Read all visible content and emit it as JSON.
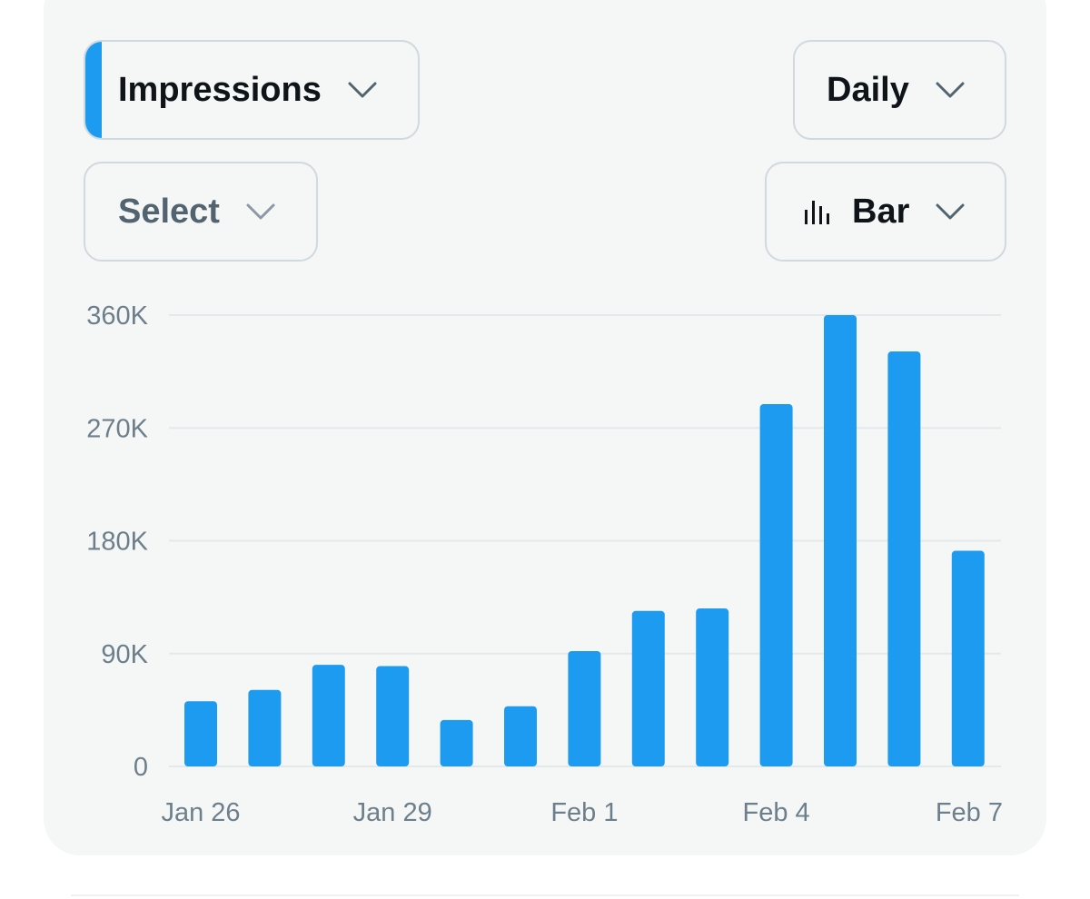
{
  "controls": {
    "metric": "Impressions",
    "period": "Daily",
    "filter": "Select",
    "chart_type": "Bar",
    "icons": {
      "dropdown": "chevron-down-icon",
      "chart_type": "bar-chart-icon"
    }
  },
  "colors": {
    "bar": "#1d9bf0",
    "accent": "#1d9bf0",
    "grid": "#e3e8eb",
    "card": "#f5f7f7"
  },
  "chart_data": {
    "type": "bar",
    "categories": [
      "Jan 26",
      "Jan 27",
      "Jan 28",
      "Jan 29",
      "Jan 30",
      "Jan 31",
      "Feb 1",
      "Feb 2",
      "Feb 3",
      "Feb 4",
      "Feb 5",
      "Feb 6",
      "Feb 7"
    ],
    "values": [
      52000,
      61000,
      81000,
      80000,
      37000,
      48000,
      92000,
      124000,
      126000,
      289000,
      360000,
      331000,
      172000
    ],
    "x_tick_labels": [
      "Jan 26",
      "Jan 29",
      "Feb 1",
      "Feb 4",
      "Feb 7"
    ],
    "y_ticks": [
      {
        "value": 0,
        "label": "0"
      },
      {
        "value": 90000,
        "label": "90K"
      },
      {
        "value": 180000,
        "label": "180K"
      },
      {
        "value": 270000,
        "label": "270K"
      },
      {
        "value": 360000,
        "label": "360K"
      }
    ],
    "ylim": [
      0,
      360000
    ],
    "grid": true,
    "legend": false
  }
}
